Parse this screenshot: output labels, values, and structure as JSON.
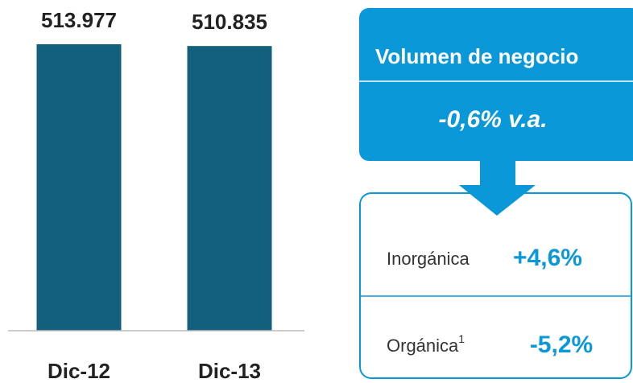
{
  "chart_data": {
    "type": "bar",
    "categories": [
      "Dic-12",
      "Dic-13"
    ],
    "values": [
      513977,
      510835
    ],
    "value_labels": [
      "513.977",
      "510.835"
    ],
    "color": "#135f7e"
  },
  "panel": {
    "title": "Volumen de negocio",
    "change": "-0,6% v.a.",
    "rows": [
      {
        "label": "Inorgánica",
        "value": "+4,6%"
      },
      {
        "label": "Orgánica",
        "note": "1",
        "value": "-5,2%"
      }
    ]
  }
}
